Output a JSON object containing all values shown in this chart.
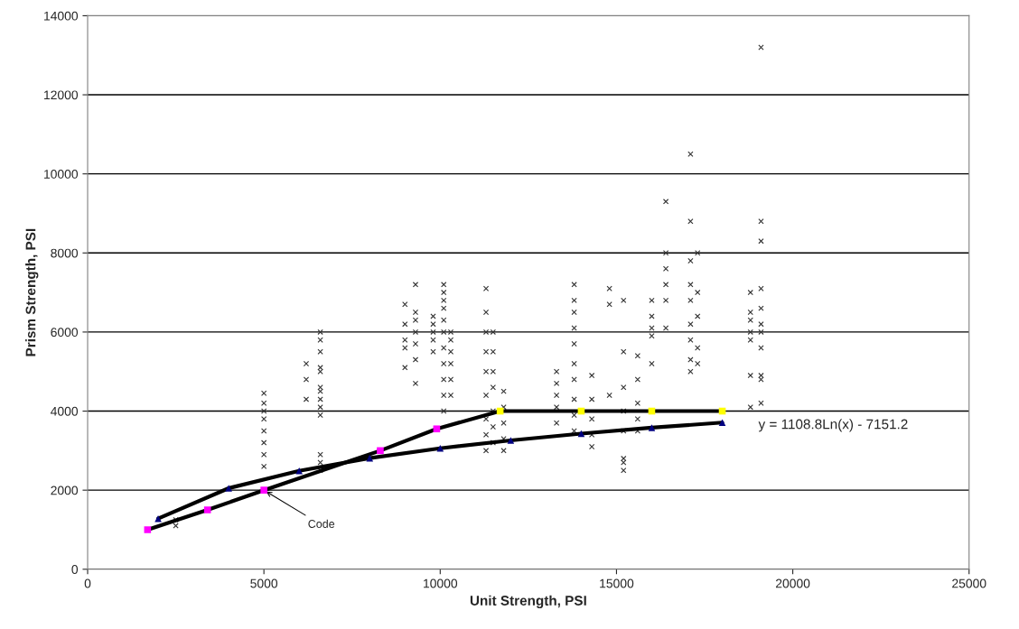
{
  "chart_data": {
    "type": "scatter",
    "xlabel": "Unit Strength, PSI",
    "ylabel": "Prism Strength, PSI",
    "xlim": [
      0,
      25000
    ],
    "ylim": [
      0,
      14000
    ],
    "xticks": [
      0,
      5000,
      10000,
      15000,
      20000,
      25000
    ],
    "yticks": [
      0,
      2000,
      4000,
      6000,
      8000,
      10000,
      12000,
      14000
    ],
    "grid": "y",
    "legend": false,
    "series": [
      {
        "marker": "cross",
        "color": "#333333",
        "x": [
          2500,
          2500,
          5000,
          5000,
          5000,
          5000,
          5000,
          5000,
          5000,
          5000,
          6200,
          6200,
          6200,
          6600,
          6600,
          6600,
          6600,
          6600,
          6600,
          6600,
          6600,
          6600,
          6600,
          6600,
          6600,
          6600,
          9000,
          9000,
          9000,
          9000,
          9000,
          9300,
          9300,
          9300,
          9300,
          9300,
          9300,
          9300,
          9800,
          9800,
          9800,
          9800,
          9800,
          10100,
          10100,
          10100,
          10100,
          10100,
          10100,
          10100,
          10100,
          10100,
          10100,
          10100,
          10300,
          10300,
          10300,
          10300,
          10300,
          10300,
          11300,
          11300,
          11300,
          11300,
          11300,
          11300,
          11300,
          11300,
          11300,
          11500,
          11500,
          11500,
          11500,
          11500,
          11500,
          11500,
          11800,
          11800,
          11800,
          11800,
          11800,
          13300,
          13300,
          13300,
          13300,
          13300,
          13800,
          13800,
          13800,
          13800,
          13800,
          13800,
          13800,
          13800,
          13800,
          13800,
          14300,
          14300,
          14300,
          14300,
          14300,
          14800,
          14800,
          14800,
          15200,
          15200,
          15200,
          15200,
          15200,
          15200,
          15200,
          15200,
          15600,
          15600,
          15600,
          15600,
          15600,
          16000,
          16000,
          16000,
          16000,
          16000,
          16400,
          16400,
          16400,
          16400,
          16400,
          16400,
          17100,
          17100,
          17100,
          17100,
          17100,
          17100,
          17100,
          17100,
          17100,
          17300,
          17300,
          17300,
          17300,
          17300,
          18800,
          18800,
          18800,
          18800,
          18800,
          18800,
          18800,
          19100,
          19100,
          19100,
          19100,
          19100,
          19100,
          19100,
          19100,
          19100,
          19100,
          19100
        ],
        "values": [
          1100,
          1250,
          2600,
          2900,
          3200,
          3500,
          3800,
          4000,
          4200,
          4450,
          4300,
          4800,
          5200,
          2500,
          2700,
          2900,
          3900,
          4100,
          4300,
          4500,
          4600,
          5000,
          5100,
          5500,
          5800,
          6000,
          5100,
          5600,
          5800,
          6200,
          6700,
          4700,
          5300,
          5700,
          6000,
          6300,
          6500,
          7200,
          5500,
          5800,
          6000,
          6200,
          6400,
          4000,
          4400,
          4800,
          5200,
          5600,
          6000,
          6300,
          6600,
          6800,
          7000,
          7200,
          4400,
          4800,
          5200,
          5500,
          5800,
          6000,
          3000,
          3400,
          3800,
          4400,
          5000,
          5500,
          6000,
          6500,
          7100,
          3200,
          3600,
          4000,
          4600,
          5000,
          5500,
          6000,
          3000,
          3300,
          3700,
          4100,
          4500,
          3700,
          4100,
          4400,
          4700,
          5000,
          3500,
          3900,
          4300,
          4800,
          5200,
          5700,
          6100,
          6500,
          6800,
          7200,
          3100,
          3400,
          3800,
          4300,
          4900,
          4400,
          6700,
          7100,
          2500,
          2700,
          2800,
          3500,
          4000,
          4600,
          5500,
          6800,
          3500,
          3800,
          4200,
          4800,
          5400,
          5200,
          5900,
          6100,
          6400,
          6800,
          6100,
          6800,
          7200,
          7600,
          8000,
          9300,
          5000,
          5300,
          5800,
          6200,
          6800,
          7200,
          7800,
          8800,
          10500,
          5200,
          5600,
          6400,
          7000,
          8000,
          4100,
          4900,
          5800,
          6000,
          6300,
          6500,
          7000,
          4200,
          4800,
          4900,
          5600,
          6000,
          6200,
          6600,
          7100,
          8300,
          8800,
          13200
        ]
      },
      {
        "type": "line",
        "color": "#000000",
        "marker": "square",
        "x": [
          1700,
          3400,
          5000,
          8300,
          9900,
          11700,
          14000,
          16000,
          18000
        ],
        "values": [
          1000,
          1500,
          2000,
          3000,
          3550,
          4000,
          4000,
          4000,
          4000
        ],
        "colors": [
          "#ff00ff",
          "#ff00ff",
          "#ff00ff",
          "#ff00ff",
          "#ff00ff",
          "#ffff00",
          "#ffff00",
          "#ffff00",
          "#ffff00"
        ]
      },
      {
        "type": "line",
        "color": "#000000",
        "marker": "triangle",
        "x": [
          2000,
          4000,
          6000,
          8000,
          10000,
          12000,
          14000,
          16000,
          18000
        ],
        "values": [
          1280,
          2050,
          2490,
          2810,
          3060,
          3260,
          3430,
          3580,
          3710
        ],
        "colors": [
          "#000080",
          "#000080",
          "#000080",
          "#000080",
          "#000080",
          "#000080",
          "#000080",
          "#000080",
          "#000080"
        ]
      }
    ],
    "annotations": [
      {
        "text": "Code",
        "x": 5000,
        "y": 2000
      },
      "y = 1108.8Ln(x) - 7151.2"
    ]
  }
}
